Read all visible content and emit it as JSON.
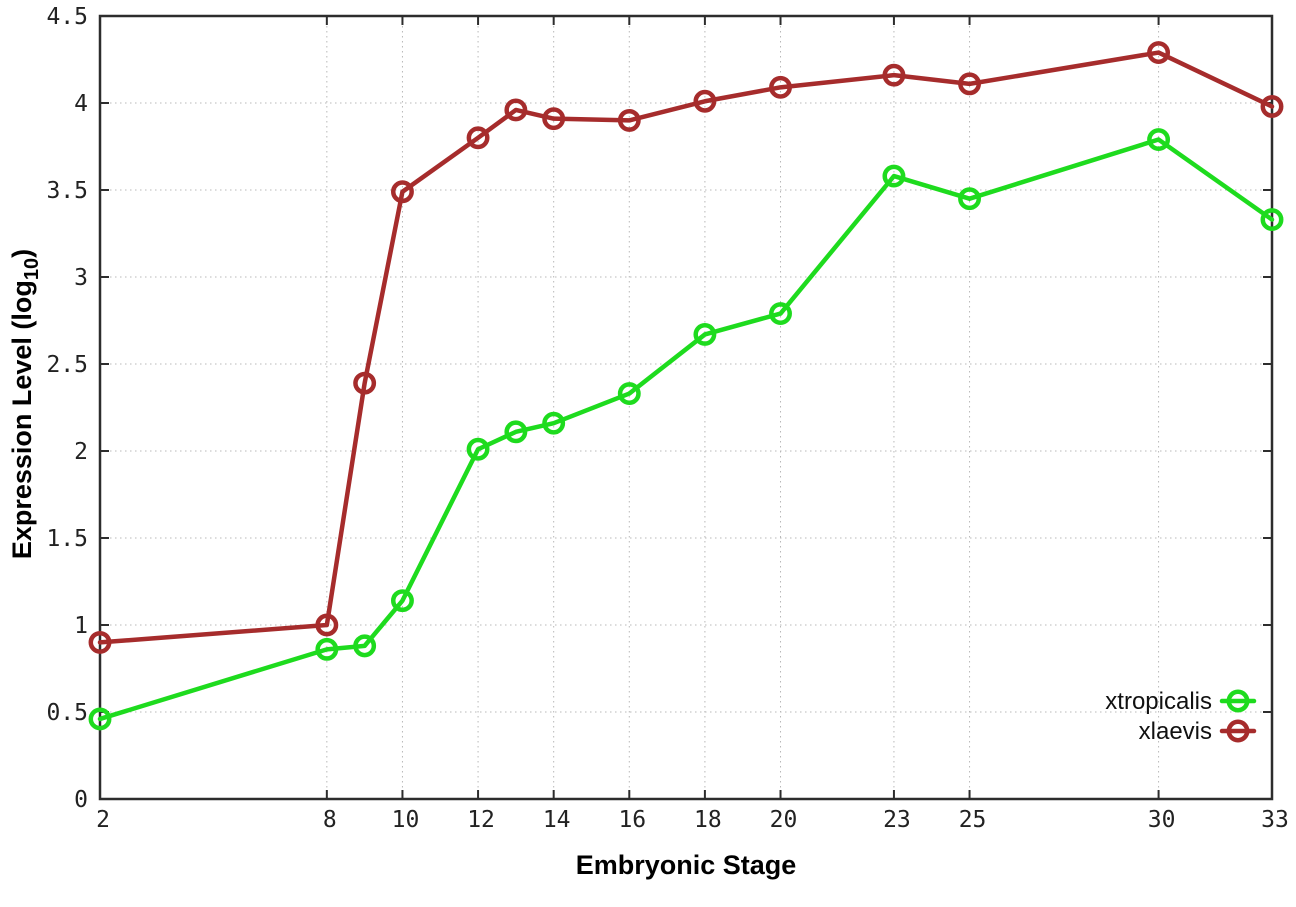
{
  "chart_data": {
    "type": "line",
    "title": "",
    "xlabel": "Embryonic Stage",
    "ylabel": "Expression Level (log10)",
    "ylabel_parts": {
      "main": "Expression Level (log",
      "sub": "10",
      "end": ")"
    },
    "x": [
      2,
      8,
      9,
      10,
      12,
      13,
      14,
      16,
      18,
      20,
      23,
      25,
      30,
      33
    ],
    "series": [
      {
        "name": "xtropicalis",
        "color": "#1edb1e",
        "marker": "open-circle",
        "values": [
          0.46,
          0.86,
          0.88,
          1.14,
          2.01,
          2.11,
          2.16,
          2.33,
          2.67,
          2.79,
          3.58,
          3.45,
          3.79,
          3.33
        ]
      },
      {
        "name": "xlaevis",
        "color": "#a62c2c",
        "marker": "open-circle",
        "values": [
          0.9,
          1.0,
          2.39,
          3.49,
          3.8,
          3.96,
          3.91,
          3.9,
          4.01,
          4.09,
          4.16,
          4.11,
          4.29,
          3.98
        ]
      }
    ],
    "x_tick_values": [
      2,
      8,
      10,
      12,
      14,
      16,
      18,
      20,
      23,
      25,
      30,
      33
    ],
    "x_tick_labels": [
      "2",
      "8",
      "10",
      "12",
      "14",
      "16",
      "18",
      "20",
      "23",
      "25",
      "30",
      "33"
    ],
    "y_tick_values": [
      0,
      0.5,
      1,
      1.5,
      2,
      2.5,
      3,
      3.5,
      4,
      4.5
    ],
    "y_tick_labels": [
      "0",
      "0.5",
      "1",
      "1.5",
      "2",
      "2.5",
      "3",
      "3.5",
      "4",
      "4.5"
    ],
    "xlim": [
      2,
      33
    ],
    "ylim": [
      0,
      4.5
    ],
    "grid": true,
    "legend_position": "bottom-right",
    "legend_entries": [
      "xtropicalis",
      "xlaevis"
    ]
  },
  "style": {
    "background": "#ffffff",
    "border_color": "#2d2d2d",
    "grid_color": "#b8b8b8",
    "tick_color": "#2d2d2d",
    "tick_label_color": "#222222",
    "axis_title_color": "#000000"
  }
}
